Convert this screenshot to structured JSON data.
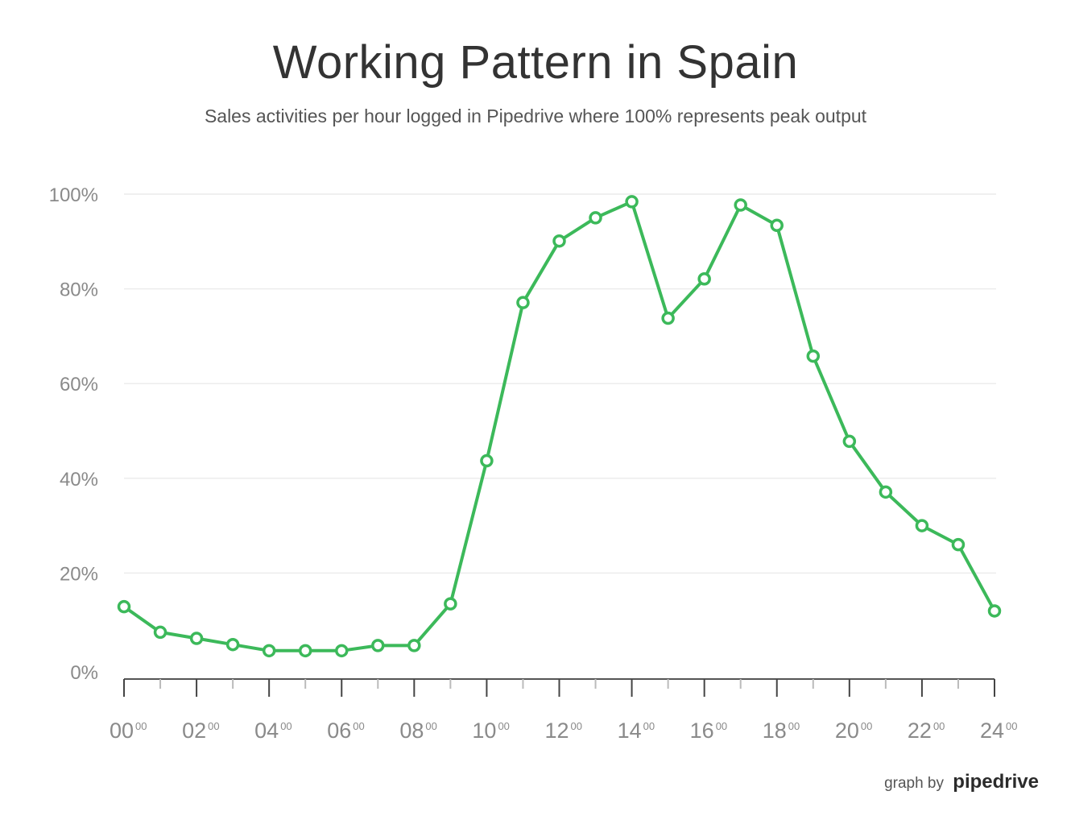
{
  "title": "Working Pattern in Spain",
  "subtitle": "Sales activities per hour logged in Pipedrive where 100% represents peak output",
  "credit": {
    "prefix": "graph by",
    "brand": "pipedrive"
  },
  "colors": {
    "line": "#3cb95a",
    "grid": "#ececec",
    "axis": "#555555",
    "tick_text": "#8a8a8a"
  },
  "chart_data": {
    "type": "line",
    "title": "Working Pattern in Spain",
    "subtitle": "Sales activities per hour logged in Pipedrive where 100% represents peak output",
    "x": [
      0,
      1,
      2,
      3,
      4,
      5,
      6,
      7,
      8,
      9,
      10,
      11,
      12,
      13,
      14,
      15,
      16,
      17,
      18,
      19,
      20,
      21,
      22,
      23,
      24
    ],
    "values": [
      12.9,
      7.5,
      6.2,
      4.9,
      3.6,
      3.6,
      3.6,
      4.7,
      4.7,
      13.5,
      43.7,
      77.1,
      90.1,
      95.0,
      98.4,
      73.8,
      82.1,
      97.7,
      93.4,
      65.8,
      47.8,
      37.1,
      30.0,
      26.0,
      12.0
    ],
    "ylim": [
      0,
      100
    ],
    "xlim": [
      0,
      24
    ],
    "y_ticks": [
      "0%",
      "20%",
      "40%",
      "60%",
      "80%",
      "100%"
    ],
    "y_tick_values": [
      0,
      20,
      40,
      60,
      80,
      100
    ],
    "x_tick_labels": [
      {
        "h": "00",
        "m": "00"
      },
      {
        "h": "02",
        "m": "00"
      },
      {
        "h": "04",
        "m": "00"
      },
      {
        "h": "06",
        "m": "00"
      },
      {
        "h": "08",
        "m": "00"
      },
      {
        "h": "10",
        "m": "00"
      },
      {
        "h": "12",
        "m": "00"
      },
      {
        "h": "14",
        "m": "00"
      },
      {
        "h": "16",
        "m": "00"
      },
      {
        "h": "18",
        "m": "00"
      },
      {
        "h": "20",
        "m": "00"
      },
      {
        "h": "22",
        "m": "00"
      },
      {
        "h": "24",
        "m": "00"
      }
    ],
    "xlabel": "",
    "ylabel": "",
    "grid": true,
    "legend": "none"
  }
}
